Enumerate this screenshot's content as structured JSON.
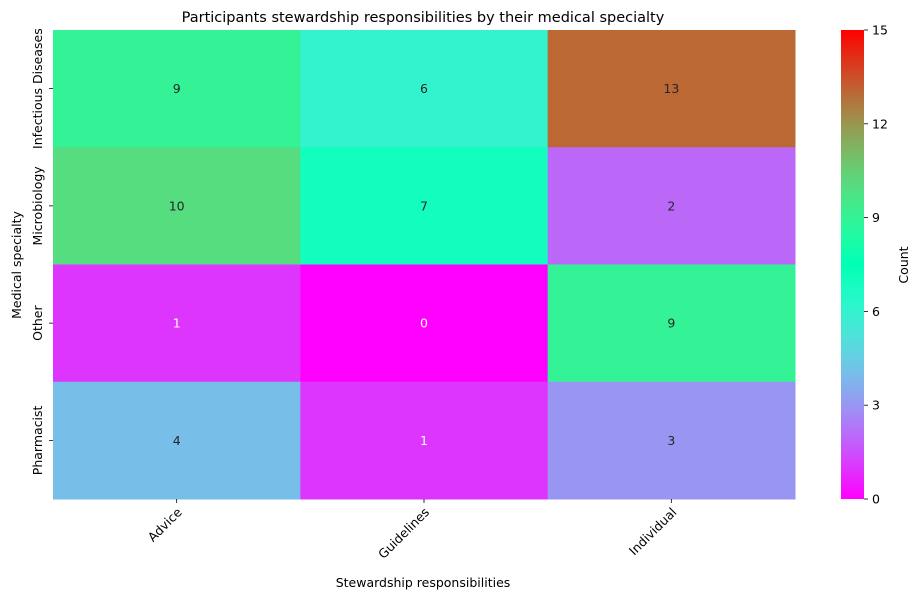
{
  "chart_data": {
    "type": "heatmap",
    "title": "Participants stewardship responsibilities by their medical specialty",
    "xlabel": "Stewardship responsibilities",
    "ylabel": "Medical specialty",
    "x_categories": [
      "Advice",
      "Guidelines",
      "Individual"
    ],
    "y_categories": [
      "Infectious Diseases",
      "Microbiology",
      "Other",
      "Pharmacist"
    ],
    "values": [
      [
        9,
        6,
        13
      ],
      [
        10,
        7,
        2
      ],
      [
        1,
        0,
        9
      ],
      [
        4,
        1,
        3
      ]
    ],
    "colorbar": {
      "label": "Count",
      "range": [
        0,
        15
      ],
      "ticks": [
        "0",
        "3",
        "6",
        "9",
        "12",
        "15"
      ],
      "colormap": "rainbow"
    },
    "annotations": true,
    "grid": false
  }
}
